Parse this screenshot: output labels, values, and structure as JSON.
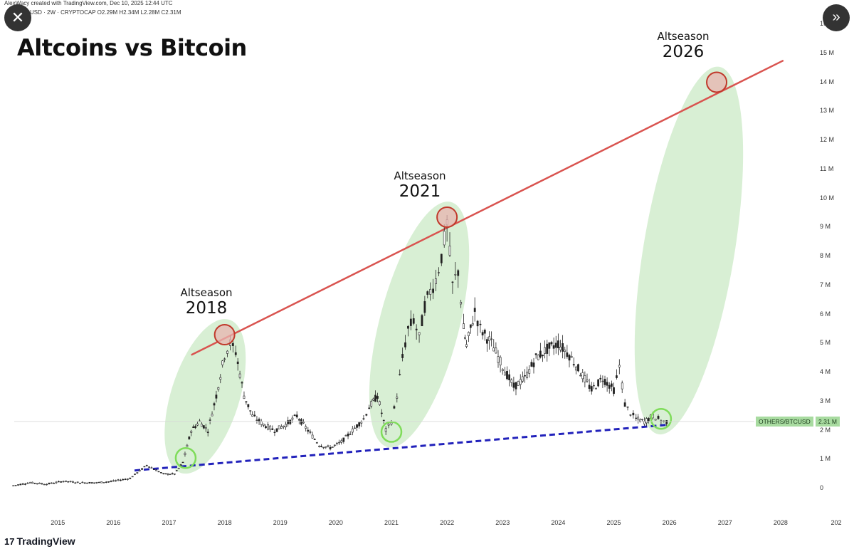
{
  "header": {
    "attribution": "AlexWacy created with TradingView.com, Dec 10, 2025 12:44 UTC",
    "symbol_line": "BTCUSD · 2W · CRYPTOCAP  O2.29M  H2.34M  L2.28M  C2.31M"
  },
  "overlay": {
    "close_icon": "close-icon",
    "close_glyph": "✕",
    "next_icon": "chevron-double-right-icon",
    "next_glyph": "»"
  },
  "footer": {
    "brand": "TradingView",
    "brand_mark": "17"
  },
  "chart_data": {
    "type": "candlestick",
    "title": "Altcoins vs Bitcoin",
    "symbol": "OTHERS/BTCUSD",
    "last_value": "2.31 M",
    "y_unit": "M",
    "ylim": [
      0,
      16
    ],
    "y_ticks": [
      0,
      1,
      2,
      3,
      4,
      5,
      6,
      7,
      8,
      9,
      10,
      11,
      12,
      13,
      14,
      15,
      16
    ],
    "y_tick_labels": [
      "0",
      "1 M",
      "2 M",
      "3 M",
      "4 M",
      "5 M",
      "6 M",
      "7 M",
      "8 M",
      "9 M",
      "10 M",
      "11 M",
      "12 M",
      "13 M",
      "14 M",
      "15 M",
      "16 M"
    ],
    "x_ticks": [
      "2015",
      "2016",
      "2017",
      "2018",
      "2019",
      "2020",
      "2021",
      "2022",
      "2023",
      "2024",
      "2025",
      "2026",
      "2027",
      "2028",
      "202"
    ],
    "xlim": [
      2014.1,
      2029.8
    ],
    "grid": false,
    "series": [
      {
        "name": "OTHERS/BTCUSD",
        "x": [
          2014.2,
          2014.5,
          2014.8,
          2015.1,
          2015.4,
          2015.7,
          2016.0,
          2016.3,
          2016.6,
          2016.9,
          2017.1,
          2017.25,
          2017.4,
          2017.55,
          2017.7,
          2017.85,
          2018.0,
          2018.1,
          2018.2,
          2018.35,
          2018.5,
          2018.7,
          2018.9,
          2019.1,
          2019.3,
          2019.5,
          2019.7,
          2019.9,
          2020.1,
          2020.3,
          2020.5,
          2020.6,
          2020.75,
          2020.9,
          2021.0,
          2021.1,
          2021.2,
          2021.3,
          2021.4,
          2021.5,
          2021.6,
          2021.7,
          2021.8,
          2021.9,
          2022.0,
          2022.1,
          2022.2,
          2022.3,
          2022.35,
          2022.5,
          2022.6,
          2022.8,
          2023.0,
          2023.2,
          2023.4,
          2023.6,
          2023.8,
          2024.0,
          2024.2,
          2024.4,
          2024.6,
          2024.8,
          2025.0,
          2025.1,
          2025.2,
          2025.3,
          2025.4,
          2025.55,
          2025.7,
          2025.8,
          2025.9,
          2026.0
        ],
        "y": [
          0.1,
          0.2,
          0.15,
          0.25,
          0.2,
          0.2,
          0.25,
          0.35,
          0.8,
          0.5,
          0.5,
          0.9,
          2.0,
          2.3,
          2.0,
          3.2,
          4.6,
          5.0,
          4.7,
          3.2,
          2.5,
          2.2,
          2.0,
          2.2,
          2.5,
          2.0,
          1.5,
          1.4,
          1.6,
          2.0,
          2.4,
          2.8,
          3.2,
          2.0,
          2.3,
          3.2,
          4.5,
          5.5,
          5.8,
          5.2,
          6.3,
          6.8,
          7.2,
          8.0,
          9.1,
          7.0,
          7.5,
          5.5,
          4.9,
          6.1,
          5.5,
          5.0,
          4.2,
          3.5,
          3.8,
          4.5,
          4.8,
          5.0,
          4.6,
          4.0,
          3.4,
          3.8,
          3.4,
          4.2,
          2.9,
          2.6,
          2.4,
          2.3,
          2.5,
          2.4,
          2.3,
          2.31
        ]
      }
    ],
    "trendlines": [
      {
        "name": "resistance",
        "color": "#d9534f",
        "style": "solid",
        "x": [
          2017.4,
          2028.05
        ],
        "y": [
          4.6,
          14.75
        ]
      },
      {
        "name": "support",
        "color": "#2222bb",
        "style": "dashed",
        "x": [
          2016.38,
          2026.0
        ],
        "y": [
          0.62,
          2.2
        ]
      }
    ],
    "annotations": [
      {
        "label": "Altseason",
        "year": "2018",
        "x": 2018.0,
        "y": 5.2
      },
      {
        "label": "Altseason",
        "year": "2021",
        "x": 2022.0,
        "y": 9.3
      },
      {
        "label": "Altseason",
        "year": "2026",
        "x": 2026.85,
        "y": 14.0
      }
    ],
    "peak_markers": [
      {
        "x": 2018.0,
        "y": 5.3
      },
      {
        "x": 2022.0,
        "y": 9.35
      },
      {
        "x": 2026.85,
        "y": 14.0
      }
    ],
    "bottom_markers": [
      {
        "x": 2017.3,
        "y": 1.05
      },
      {
        "x": 2021.0,
        "y": 1.95
      },
      {
        "x": 2025.85,
        "y": 2.4
      }
    ],
    "colors": {
      "candles": "#222222",
      "resistance": "#d9534f",
      "support": "#2222bb",
      "highlight": "#a8dba0",
      "peak_marker_stroke": "#c0392b",
      "peak_marker_fill": "#e8b4b0",
      "bottom_marker": "#7fdc5a",
      "last_value_bg": "#a8dba0"
    }
  }
}
